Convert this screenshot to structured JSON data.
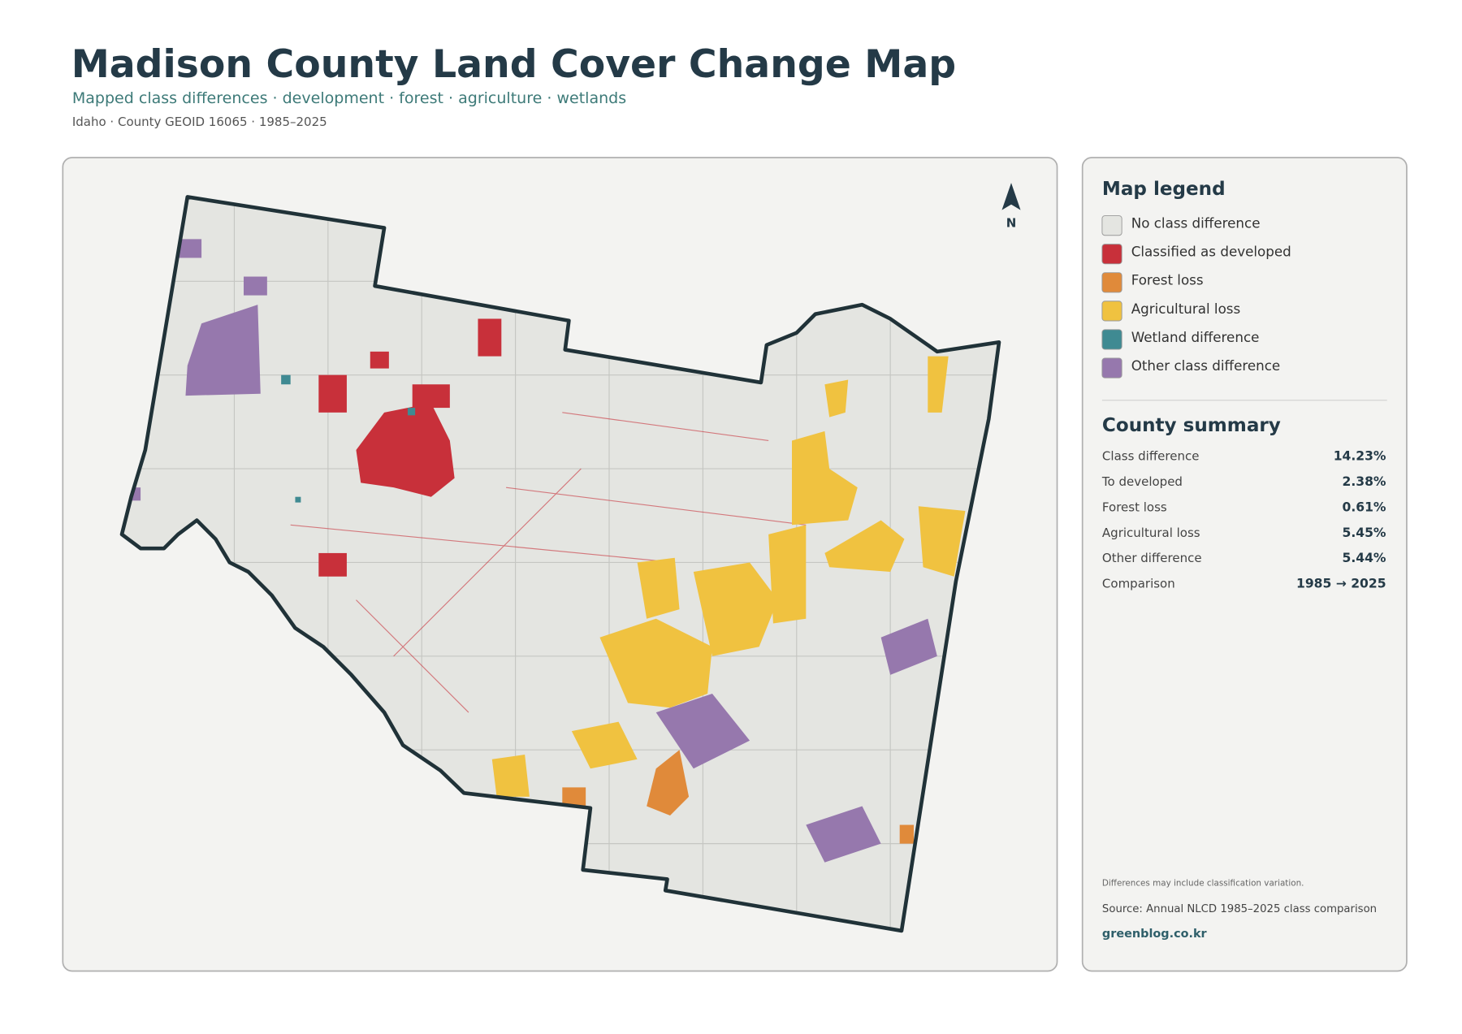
{
  "header": {
    "title": "Madison County Land Cover Change Map",
    "subtitle": "Mapped class differences · development · forest · agriculture · wetlands",
    "meta": "Idaho · County GEOID 16065 · 1985–2025"
  },
  "map": {
    "north_label": "N"
  },
  "legend": {
    "title": "Map legend",
    "items": [
      {
        "label": "No class difference",
        "color": "#e4e5e1"
      },
      {
        "label": "Classified as developed",
        "color": "#c8303a"
      },
      {
        "label": "Forest loss",
        "color": "#e08a3a"
      },
      {
        "label": "Agricultural loss",
        "color": "#f0c240"
      },
      {
        "label": "Wetland difference",
        "color": "#3f8a92"
      },
      {
        "label": "Other class difference",
        "color": "#9678ad"
      }
    ]
  },
  "summary": {
    "title": "County summary",
    "rows": [
      {
        "label": "Class difference",
        "value": "14.23%"
      },
      {
        "label": "To developed",
        "value": "2.38%"
      },
      {
        "label": "Forest loss",
        "value": "0.61%"
      },
      {
        "label": "Agricultural loss",
        "value": "5.45%"
      },
      {
        "label": "Other difference",
        "value": "5.44%"
      },
      {
        "label": "Comparison",
        "value": "1985 → 2025"
      }
    ]
  },
  "footer": {
    "note": "Differences may include classification variation.",
    "source": "Source: Annual NLCD 1985–2025 class comparison",
    "site": "greenblog.co.kr"
  }
}
